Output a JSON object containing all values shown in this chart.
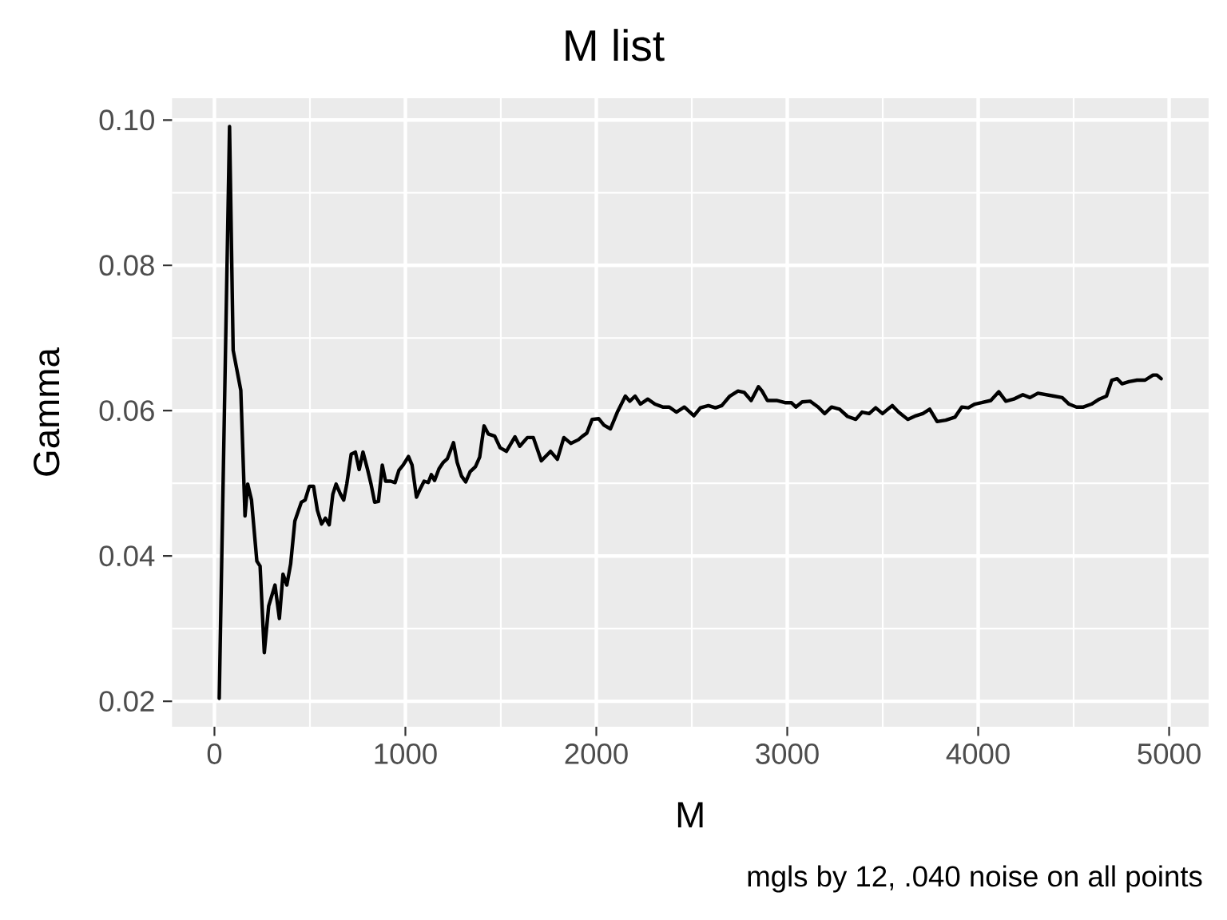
{
  "chart_data": {
    "type": "line",
    "title": "M list",
    "xlabel": "M",
    "ylabel": "Gamma",
    "annotations": [
      "mgls by 12, .040 noise on all points"
    ],
    "xlim": [
      -222,
      5207
    ],
    "ylim": [
      0.0165,
      0.103
    ],
    "xticks": [
      0,
      1000,
      2000,
      3000,
      4000,
      5000
    ],
    "yticks": [
      0.02,
      0.04,
      0.06,
      0.08,
      {
        "value": 0.1,
        "label": "0.10"
      }
    ],
    "grid": true,
    "x": [
      25,
      79,
      98,
      138,
      160,
      174,
      194,
      222,
      239,
      261,
      284,
      317,
      340,
      359,
      379,
      399,
      421,
      455,
      475,
      497,
      519,
      539,
      561,
      581,
      601,
      620,
      637,
      660,
      677,
      693,
      716,
      738,
      758,
      778,
      800,
      820,
      839,
      859,
      879,
      896,
      923,
      946,
      966,
      988,
      1016,
      1035,
      1058,
      1077,
      1098,
      1120,
      1136,
      1153,
      1176,
      1199,
      1220,
      1252,
      1271,
      1294,
      1316,
      1339,
      1367,
      1389,
      1412,
      1434,
      1468,
      1496,
      1529,
      1574,
      1599,
      1639,
      1670,
      1712,
      1760,
      1796,
      1830,
      1866,
      1906,
      1928,
      1950,
      1978,
      2012,
      2040,
      2074,
      2110,
      2152,
      2175,
      2203,
      2231,
      2270,
      2307,
      2348,
      2382,
      2419,
      2461,
      2511,
      2545,
      2587,
      2624,
      2657,
      2699,
      2742,
      2775,
      2811,
      2849,
      2868,
      2896,
      2944,
      2988,
      3022,
      3045,
      3078,
      3120,
      3162,
      3196,
      3232,
      3274,
      3316,
      3359,
      3392,
      3429,
      3463,
      3499,
      3550,
      3583,
      3631,
      3674,
      3710,
      3746,
      3785,
      3830,
      3878,
      3914,
      3948,
      3982,
      4018,
      4066,
      4108,
      4145,
      4187,
      4234,
      4271,
      4313,
      4355,
      4397,
      4440,
      4476,
      4515,
      4551,
      4593,
      4635,
      4672,
      4700,
      4728,
      4753,
      4790,
      4832,
      4874,
      4916,
      4936,
      4958
    ],
    "series": [
      {
        "color": "#000000",
        "values": [
          0.0204,
          0.0991,
          0.0683,
          0.0628,
          0.0455,
          0.0499,
          0.0477,
          0.0393,
          0.0386,
          0.0267,
          0.0331,
          0.036,
          0.0314,
          0.0375,
          0.036,
          0.0389,
          0.0448,
          0.0474,
          0.0477,
          0.0496,
          0.0496,
          0.0463,
          0.0444,
          0.0452,
          0.0443,
          0.0485,
          0.0499,
          0.0485,
          0.0477,
          0.0499,
          0.054,
          0.0543,
          0.0519,
          0.0543,
          0.0521,
          0.0499,
          0.0474,
          0.0475,
          0.0525,
          0.0503,
          0.0503,
          0.0501,
          0.0518,
          0.0525,
          0.0537,
          0.0525,
          0.0481,
          0.0492,
          0.0503,
          0.0501,
          0.0512,
          0.0504,
          0.052,
          0.0529,
          0.0534,
          0.0556,
          0.0529,
          0.051,
          0.0502,
          0.0516,
          0.0523,
          0.0536,
          0.0579,
          0.0568,
          0.0565,
          0.0549,
          0.0544,
          0.0564,
          0.0551,
          0.0563,
          0.0563,
          0.0531,
          0.0544,
          0.0533,
          0.0563,
          0.0555,
          0.056,
          0.0565,
          0.0569,
          0.0588,
          0.0589,
          0.058,
          0.0575,
          0.0598,
          0.062,
          0.0613,
          0.062,
          0.0609,
          0.0616,
          0.0609,
          0.0605,
          0.0605,
          0.0598,
          0.0605,
          0.0593,
          0.0604,
          0.0607,
          0.0604,
          0.0607,
          0.062,
          0.0627,
          0.0625,
          0.0614,
          0.0633,
          0.0627,
          0.0614,
          0.0614,
          0.0611,
          0.0611,
          0.0605,
          0.0612,
          0.0613,
          0.0605,
          0.0596,
          0.0605,
          0.0602,
          0.0592,
          0.0588,
          0.0598,
          0.0596,
          0.0604,
          0.0596,
          0.0607,
          0.0598,
          0.0588,
          0.0593,
          0.0596,
          0.0602,
          0.0585,
          0.0587,
          0.0591,
          0.0605,
          0.0604,
          0.0609,
          0.0611,
          0.0614,
          0.0626,
          0.0613,
          0.0616,
          0.0622,
          0.0618,
          0.0624,
          0.0622,
          0.062,
          0.0618,
          0.0609,
          0.0605,
          0.0605,
          0.0609,
          0.0616,
          0.062,
          0.0642,
          0.0644,
          0.0637,
          0.064,
          0.0642,
          0.0642,
          0.0649,
          0.0649,
          0.0644
        ]
      }
    ]
  }
}
